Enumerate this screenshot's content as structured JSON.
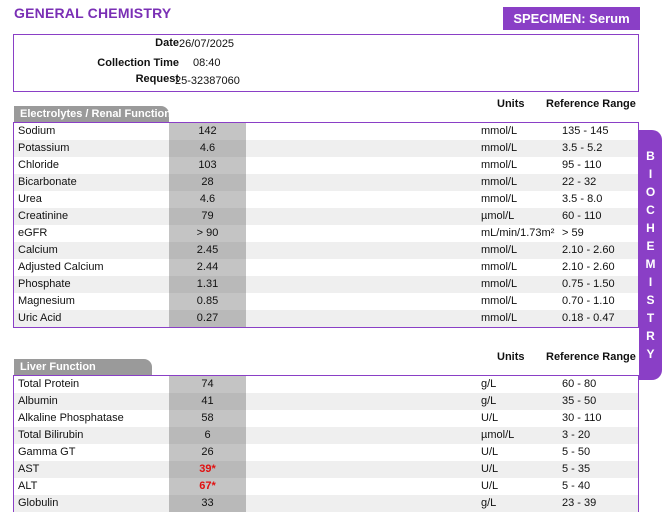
{
  "header": {
    "title": "GENERAL CHEMISTRY",
    "specimen": "SPECIMEN: Serum"
  },
  "request": {
    "date_label": "Date",
    "date_value": "26/07/2025",
    "time_label": "Collection Time",
    "time_value": "08:40",
    "request_label": "Request",
    "request_value": "25-32387060"
  },
  "side_label": [
    "B",
    "I",
    "O",
    "C",
    "H",
    "E",
    "M",
    "I",
    "S",
    "T",
    "R",
    "Y"
  ],
  "columns": {
    "units": "Units",
    "reference": "Reference Range"
  },
  "electrolytes": {
    "title": "Electrolytes / Renal Function",
    "rows": [
      {
        "name": "Sodium",
        "value": "142",
        "unit": "mmol/L",
        "ref": "135 - 145"
      },
      {
        "name": "Potassium",
        "value": "4.6",
        "unit": "mmol/L",
        "ref": "3.5 - 5.2"
      },
      {
        "name": "Chloride",
        "value": "103",
        "unit": "mmol/L",
        "ref": "95 - 110"
      },
      {
        "name": "Bicarbonate",
        "value": "28",
        "unit": "mmol/L",
        "ref": "22 - 32"
      },
      {
        "name": "Urea",
        "value": "4.6",
        "unit": "mmol/L",
        "ref": "3.5 - 8.0"
      },
      {
        "name": "Creatinine",
        "value": "79",
        "unit": "µmol/L",
        "ref": "60 - 110"
      },
      {
        "name": "eGFR",
        "value": "> 90",
        "unit": "mL/min/1.73m²",
        "ref": "> 59"
      },
      {
        "name": "Calcium",
        "value": "2.45",
        "unit": "mmol/L",
        "ref": "2.10 - 2.60"
      },
      {
        "name": "Adjusted Calcium",
        "value": "2.44",
        "unit": "mmol/L",
        "ref": "2.10 - 2.60"
      },
      {
        "name": "Phosphate",
        "value": "1.31",
        "unit": "mmol/L",
        "ref": "0.75 - 1.50"
      },
      {
        "name": "Magnesium",
        "value": "0.85",
        "unit": "mmol/L",
        "ref": "0.70 - 1.10"
      },
      {
        "name": "Uric Acid",
        "value": "0.27",
        "unit": "mmol/L",
        "ref": "0.18 - 0.47"
      }
    ]
  },
  "liver": {
    "title": "Liver Function",
    "rows": [
      {
        "name": "Total Protein",
        "value": "74",
        "unit": "g/L",
        "ref": "60 - 80"
      },
      {
        "name": "Albumin",
        "value": "41",
        "unit": "g/L",
        "ref": "35 - 50"
      },
      {
        "name": "Alkaline Phosphatase",
        "value": "58",
        "unit": "U/L",
        "ref": "30 - 110"
      },
      {
        "name": "Total Bilirubin",
        "value": "6",
        "unit": "µmol/L",
        "ref": "3 - 20"
      },
      {
        "name": "Gamma GT",
        "value": "26",
        "unit": "U/L",
        "ref": "5 - 50"
      },
      {
        "name": "AST",
        "value": "39*",
        "unit": "U/L",
        "ref": "5 - 35",
        "abnormal": true
      },
      {
        "name": "ALT",
        "value": "67*",
        "unit": "U/L",
        "ref": "5 - 40",
        "abnormal": true
      },
      {
        "name": "Globulin",
        "value": "33",
        "unit": "g/L",
        "ref": "23 - 39"
      }
    ]
  },
  "colors": {
    "accent": "#8a3fc6",
    "title": "#7a2fb5",
    "abnormal": "#e01010"
  }
}
